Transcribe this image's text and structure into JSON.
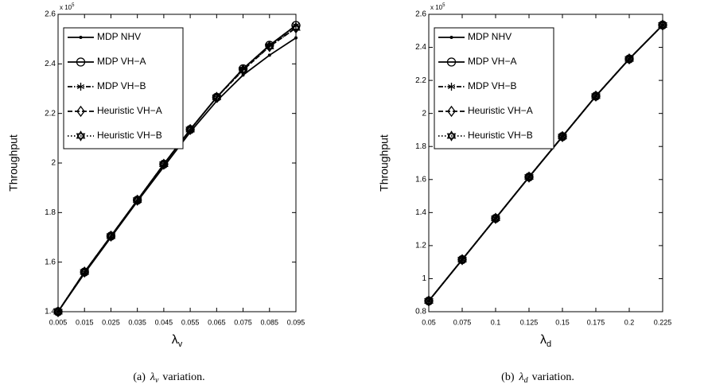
{
  "chart_data": [
    {
      "type": "line",
      "y_label": "Throughput",
      "x_label": "λ",
      "x_label_sub": "v",
      "y_scale_base": "x 10",
      "y_scale_exponent": 5,
      "caption_prefix": "(a)",
      "caption_suffix": "variation.",
      "x": [
        0.005,
        0.015,
        0.025,
        0.035,
        0.045,
        0.055,
        0.065,
        0.075,
        0.085,
        0.095
      ],
      "xlim": [
        0.005,
        0.095
      ],
      "xticks": [
        0.005,
        0.015,
        0.025,
        0.035,
        0.045,
        0.055,
        0.065,
        0.075,
        0.085,
        0.095
      ],
      "ylim": [
        1.4,
        2.6
      ],
      "yticks": [
        1.4,
        1.6,
        1.8,
        2,
        2.2,
        2.4,
        2.6
      ],
      "legend": "upper left",
      "series": [
        {
          "name": "MDP NHV",
          "color": "#000000",
          "marker": "dot",
          "dash": "solid",
          "values": [
            1.4,
            1.555,
            1.7,
            1.845,
            1.985,
            2.125,
            2.25,
            2.355,
            2.435,
            2.505
          ]
        },
        {
          "name": "MDP VH−A",
          "color": "#000000",
          "marker": "circle",
          "dash": "solid",
          "values": [
            1.4,
            1.56,
            1.705,
            1.85,
            1.995,
            2.135,
            2.265,
            2.38,
            2.475,
            2.555
          ]
        },
        {
          "name": "MDP VH−B",
          "color": "#000000",
          "marker": "asterisk",
          "dash": "dashdot",
          "values": [
            1.4,
            1.56,
            1.705,
            1.85,
            1.995,
            2.135,
            2.265,
            2.38,
            2.475,
            2.555
          ]
        },
        {
          "name": "Heuristic VH−A",
          "color": "#000000",
          "marker": "diamond",
          "dash": "dashed",
          "values": [
            1.4,
            1.56,
            1.705,
            1.85,
            1.995,
            2.135,
            2.265,
            2.375,
            2.47,
            2.545
          ]
        },
        {
          "name": "Heuristic VH−B",
          "color": "#000000",
          "marker": "hexagram",
          "dash": "dotted",
          "values": [
            1.4,
            1.56,
            1.705,
            1.85,
            1.995,
            2.135,
            2.265,
            2.375,
            2.47,
            2.545
          ]
        }
      ]
    },
    {
      "type": "line",
      "y_label": "Throughput",
      "x_label": "λ",
      "x_label_sub": "d",
      "y_scale_base": "x 10",
      "y_scale_exponent": 5,
      "caption_prefix": "(b)",
      "caption_suffix": "variation.",
      "x": [
        0.05,
        0.075,
        0.1,
        0.125,
        0.15,
        0.175,
        0.2,
        0.225
      ],
      "xlim": [
        0.05,
        0.225
      ],
      "xticks": [
        0.05,
        0.075,
        0.1,
        0.125,
        0.15,
        0.175,
        0.2,
        0.225
      ],
      "ylim": [
        0.8,
        2.6
      ],
      "yticks": [
        0.8,
        1,
        1.2,
        1.4,
        1.6,
        1.8,
        2,
        2.2,
        2.4,
        2.6
      ],
      "legend": "upper left",
      "series": [
        {
          "name": "MDP NHV",
          "color": "#000000",
          "marker": "dot",
          "dash": "solid",
          "values": [
            0.865,
            1.115,
            1.365,
            1.615,
            1.86,
            2.105,
            2.33,
            2.535
          ]
        },
        {
          "name": "MDP VH−A",
          "color": "#000000",
          "marker": "circle",
          "dash": "solid",
          "values": [
            0.865,
            1.115,
            1.365,
            1.615,
            1.86,
            2.105,
            2.33,
            2.535
          ]
        },
        {
          "name": "MDP VH−B",
          "color": "#000000",
          "marker": "asterisk",
          "dash": "dashdot",
          "values": [
            0.865,
            1.115,
            1.365,
            1.615,
            1.86,
            2.105,
            2.33,
            2.535
          ]
        },
        {
          "name": "Heuristic VH−A",
          "color": "#000000",
          "marker": "diamond",
          "dash": "dashed",
          "values": [
            0.865,
            1.115,
            1.365,
            1.615,
            1.86,
            2.105,
            2.33,
            2.535
          ]
        },
        {
          "name": "Heuristic VH−B",
          "color": "#000000",
          "marker": "hexagram",
          "dash": "dotted",
          "values": [
            0.865,
            1.115,
            1.365,
            1.615,
            1.86,
            2.105,
            2.33,
            2.535
          ]
        }
      ]
    }
  ]
}
